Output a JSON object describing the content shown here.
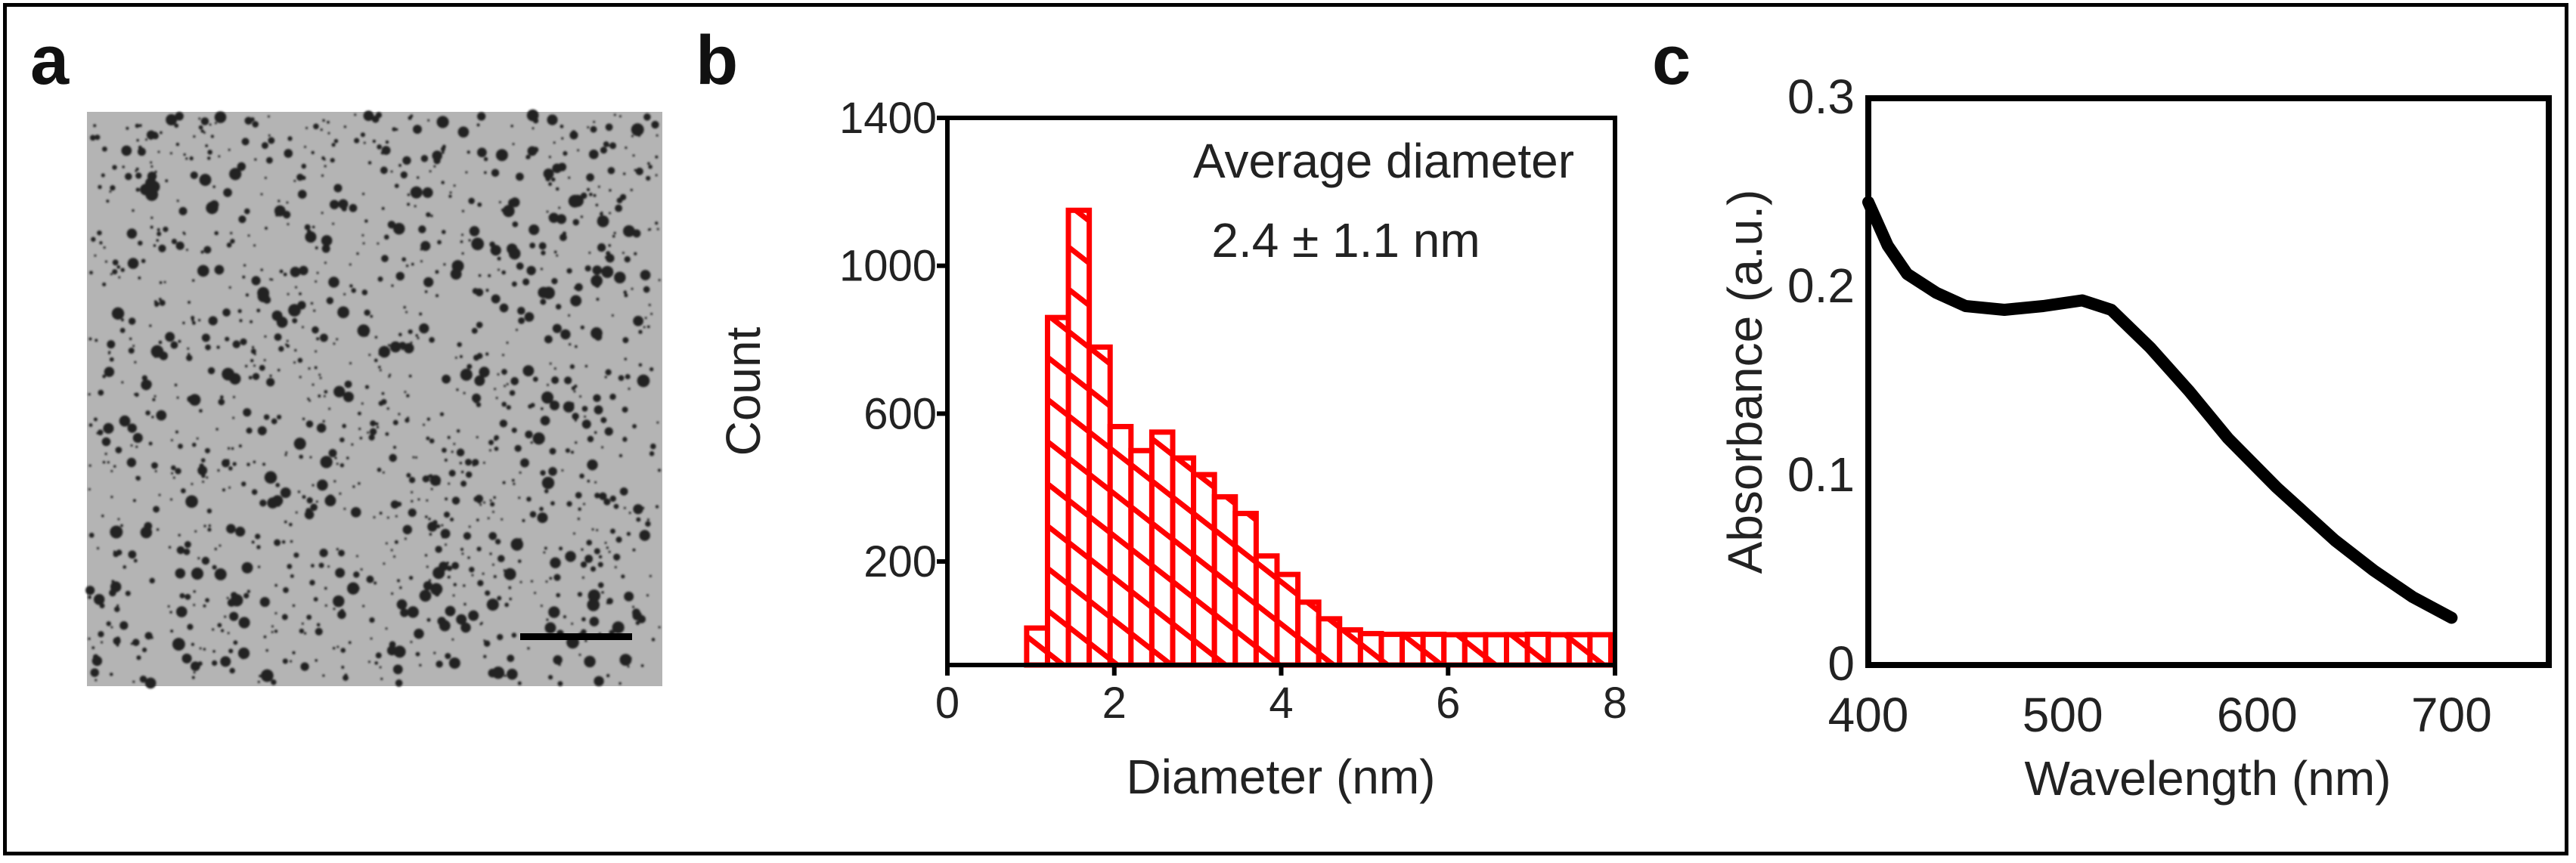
{
  "panels": {
    "a": "a",
    "b": "b",
    "c": "c"
  },
  "tem_image": {
    "description_label": "",
    "scale_bar": true
  },
  "chart_data": [
    {
      "type": "bar",
      "panel": "b",
      "xlabel": "Diameter (nm)",
      "ylabel": "Count",
      "xlim": [
        0,
        8
      ],
      "ylim": [
        -80,
        1400
      ],
      "xticks": [
        "0",
        "2",
        "4",
        "6",
        "8"
      ],
      "yticks": [
        "200",
        "600",
        "1000",
        "1400"
      ],
      "annotation": [
        "Average diameter",
        "2.4 ± 1.1 nm"
      ],
      "bin_width": 0.25,
      "bin_starts": [
        0.95,
        1.2,
        1.45,
        1.7,
        1.95,
        2.2,
        2.45,
        2.7,
        2.95,
        3.2,
        3.45,
        3.7,
        3.95,
        4.2,
        4.45,
        4.7,
        4.95,
        5.2,
        5.45,
        5.7,
        5.95,
        6.2,
        6.45,
        6.7,
        6.95,
        7.2,
        7.45,
        7.7
      ],
      "values": [
        20,
        860,
        1150,
        780,
        565,
        500,
        550,
        480,
        435,
        375,
        330,
        215,
        165,
        90,
        45,
        15,
        5,
        3,
        3,
        3,
        2,
        2,
        2,
        2,
        3,
        2,
        2,
        2
      ],
      "color": "#ff0000",
      "hatch": "diagonal"
    },
    {
      "type": "line",
      "panel": "c",
      "xlabel": "Wavelength (nm)",
      "ylabel": "Absorbance (a.u.)",
      "xlim": [
        400,
        750
      ],
      "ylim": [
        0,
        0.3
      ],
      "xticks": [
        "400",
        "500",
        "600",
        "700"
      ],
      "yticks": [
        "0",
        "0.1",
        "0.2",
        "0.3"
      ],
      "x": [
        400,
        410,
        420,
        435,
        450,
        470,
        490,
        510,
        525,
        545,
        565,
        585,
        610,
        625,
        640,
        660,
        680,
        700
      ],
      "y": [
        0.245,
        0.222,
        0.207,
        0.197,
        0.19,
        0.188,
        0.19,
        0.193,
        0.188,
        0.168,
        0.145,
        0.12,
        0.094,
        0.08,
        0.066,
        0.05,
        0.036,
        0.025
      ],
      "color": "#000000"
    }
  ]
}
